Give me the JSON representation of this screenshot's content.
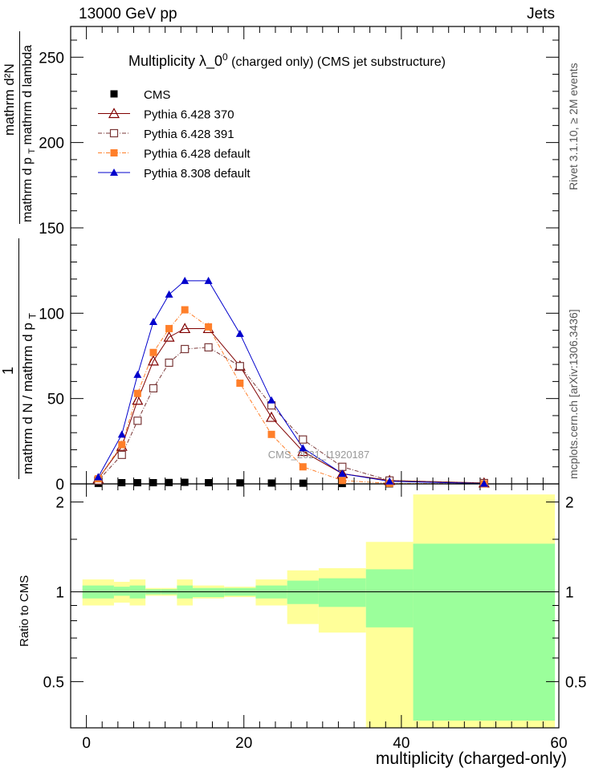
{
  "header": {
    "energy_label": "13000 GeV pp",
    "category_label": "Jets"
  },
  "side": {
    "rivet_label": "Rivet 3.1.10, ≥ 2M events",
    "mcplots_label": "mcplots.cern.ch [arXiv:1306.3436]"
  },
  "chart_data": [
    {
      "type": "line",
      "title": "Multiplicity  λ_0⁰ (charged only) (CMS jet substructure)",
      "title_main": "Multiplicity  λ_0",
      "title_sup": "0",
      "title_rest": " (charged only) (CMS jet substructure)",
      "ylabel_parts": {
        "outer_num": "1",
        "outer_den": "mathrm d N / mathrm d p",
        "outer_den_sub": "T",
        "inner_num": "mathrm d²N",
        "inner_den_a": "mathrm d p",
        "inner_den_sub": "T",
        "inner_den_b": "mathrm d lambda"
      },
      "xlabel": "multiplicity (charged-only)",
      "xlim": [
        -2,
        60
      ],
      "ylim": [
        0,
        268
      ],
      "yticks": [
        0,
        50,
        100,
        150,
        200,
        250
      ],
      "ytick_labels": [
        "0",
        "50",
        "100",
        "150",
        "200",
        "250"
      ],
      "watermark": "CMS_2021_I1920187",
      "x": [
        1.5,
        4.5,
        6.5,
        8.5,
        10.5,
        12.5,
        15.5,
        19.5,
        23.5,
        27.5,
        32.5,
        38.5,
        50.5
      ],
      "series": [
        {
          "name": "CMS",
          "color": "#000000",
          "marker": "square-filled",
          "values": [
            0.3,
            0.7,
            0.7,
            0.7,
            0.8,
            0.9,
            0.7,
            0.6,
            0.5,
            0.4,
            0.2,
            0.05,
            0.0
          ]
        },
        {
          "name": "Pythia 6.428 370",
          "color": "#800000",
          "marker": "triangle-open",
          "dash": "",
          "values": [
            3,
            22,
            49,
            72,
            86,
            91,
            91,
            69,
            39,
            19,
            6,
            2,
            0.5
          ]
        },
        {
          "name": "Pythia 6.428 391",
          "color": "#7a3838",
          "marker": "square-open",
          "dash": "5,2,1,2",
          "values": [
            2,
            17,
            37,
            56,
            71,
            79,
            80,
            69,
            46,
            26,
            10,
            2,
            0.5
          ]
        },
        {
          "name": "Pythia 6.428 default",
          "color": "#ff7f2a",
          "marker": "square-filled",
          "dash": "5,2,1,2",
          "values": [
            3,
            23,
            53,
            77,
            91,
            102,
            92,
            59,
            29,
            10,
            2,
            0.3,
            0.05
          ]
        },
        {
          "name": "Pythia 8.308 default",
          "color": "#0000cc",
          "marker": "triangle-filled",
          "dash": "",
          "values": [
            4,
            29,
            64,
            95,
            111,
            119,
            119,
            88,
            49,
            21,
            6,
            1.5,
            0.2
          ]
        }
      ]
    },
    {
      "type": "area",
      "ylabel": "Ratio to CMS",
      "xlim": [
        -2,
        60
      ],
      "ylim": [
        0.35,
        2.3
      ],
      "yticks": [
        0.5,
        1,
        2
      ],
      "ytick_labels": [
        "0.5",
        "1",
        "2"
      ],
      "xticks": [
        0,
        20,
        40,
        60
      ],
      "xtick_labels": [
        "0",
        "20",
        "40",
        "60"
      ],
      "bins": [
        {
          "lo": -0.5,
          "hi": 3.5,
          "stat": [
            0.95,
            1.05
          ],
          "total": [
            0.9,
            1.1
          ]
        },
        {
          "lo": 3.5,
          "hi": 5.5,
          "stat": [
            0.97,
            1.04
          ],
          "total": [
            0.92,
            1.08
          ]
        },
        {
          "lo": 5.5,
          "hi": 7.5,
          "stat": [
            0.95,
            1.05
          ],
          "total": [
            0.9,
            1.1
          ]
        },
        {
          "lo": 7.5,
          "hi": 9.5,
          "stat": [
            0.98,
            1.02
          ],
          "total": [
            0.97,
            1.03
          ]
        },
        {
          "lo": 9.5,
          "hi": 11.5,
          "stat": [
            0.98,
            1.02
          ],
          "total": [
            0.97,
            1.03
          ]
        },
        {
          "lo": 11.5,
          "hi": 13.5,
          "stat": [
            0.95,
            1.05
          ],
          "total": [
            0.9,
            1.1
          ]
        },
        {
          "lo": 13.5,
          "hi": 17.5,
          "stat": [
            0.96,
            1.03
          ],
          "total": [
            0.95,
            1.05
          ]
        },
        {
          "lo": 17.5,
          "hi": 21.5,
          "stat": [
            0.97,
            1.03
          ],
          "total": [
            0.96,
            1.04
          ]
        },
        {
          "lo": 21.5,
          "hi": 25.5,
          "stat": [
            0.95,
            1.05
          ],
          "total": [
            0.9,
            1.1
          ]
        },
        {
          "lo": 25.5,
          "hi": 29.5,
          "stat": [
            0.91,
            1.09
          ],
          "total": [
            0.78,
            1.18
          ]
        },
        {
          "lo": 29.5,
          "hi": 35.5,
          "stat": [
            0.89,
            1.11
          ],
          "total": [
            0.73,
            1.2
          ]
        },
        {
          "lo": 35.5,
          "hi": 41.5,
          "stat": [
            0.76,
            1.19
          ],
          "total": [
            0.35,
            1.47
          ]
        },
        {
          "lo": 41.5,
          "hi": 59.5,
          "stat": [
            0.37,
            1.45
          ],
          "total": [
            0.35,
            2.12
          ]
        }
      ],
      "colors": {
        "stat": "#9bff9b",
        "total": "#ffff99"
      }
    }
  ]
}
